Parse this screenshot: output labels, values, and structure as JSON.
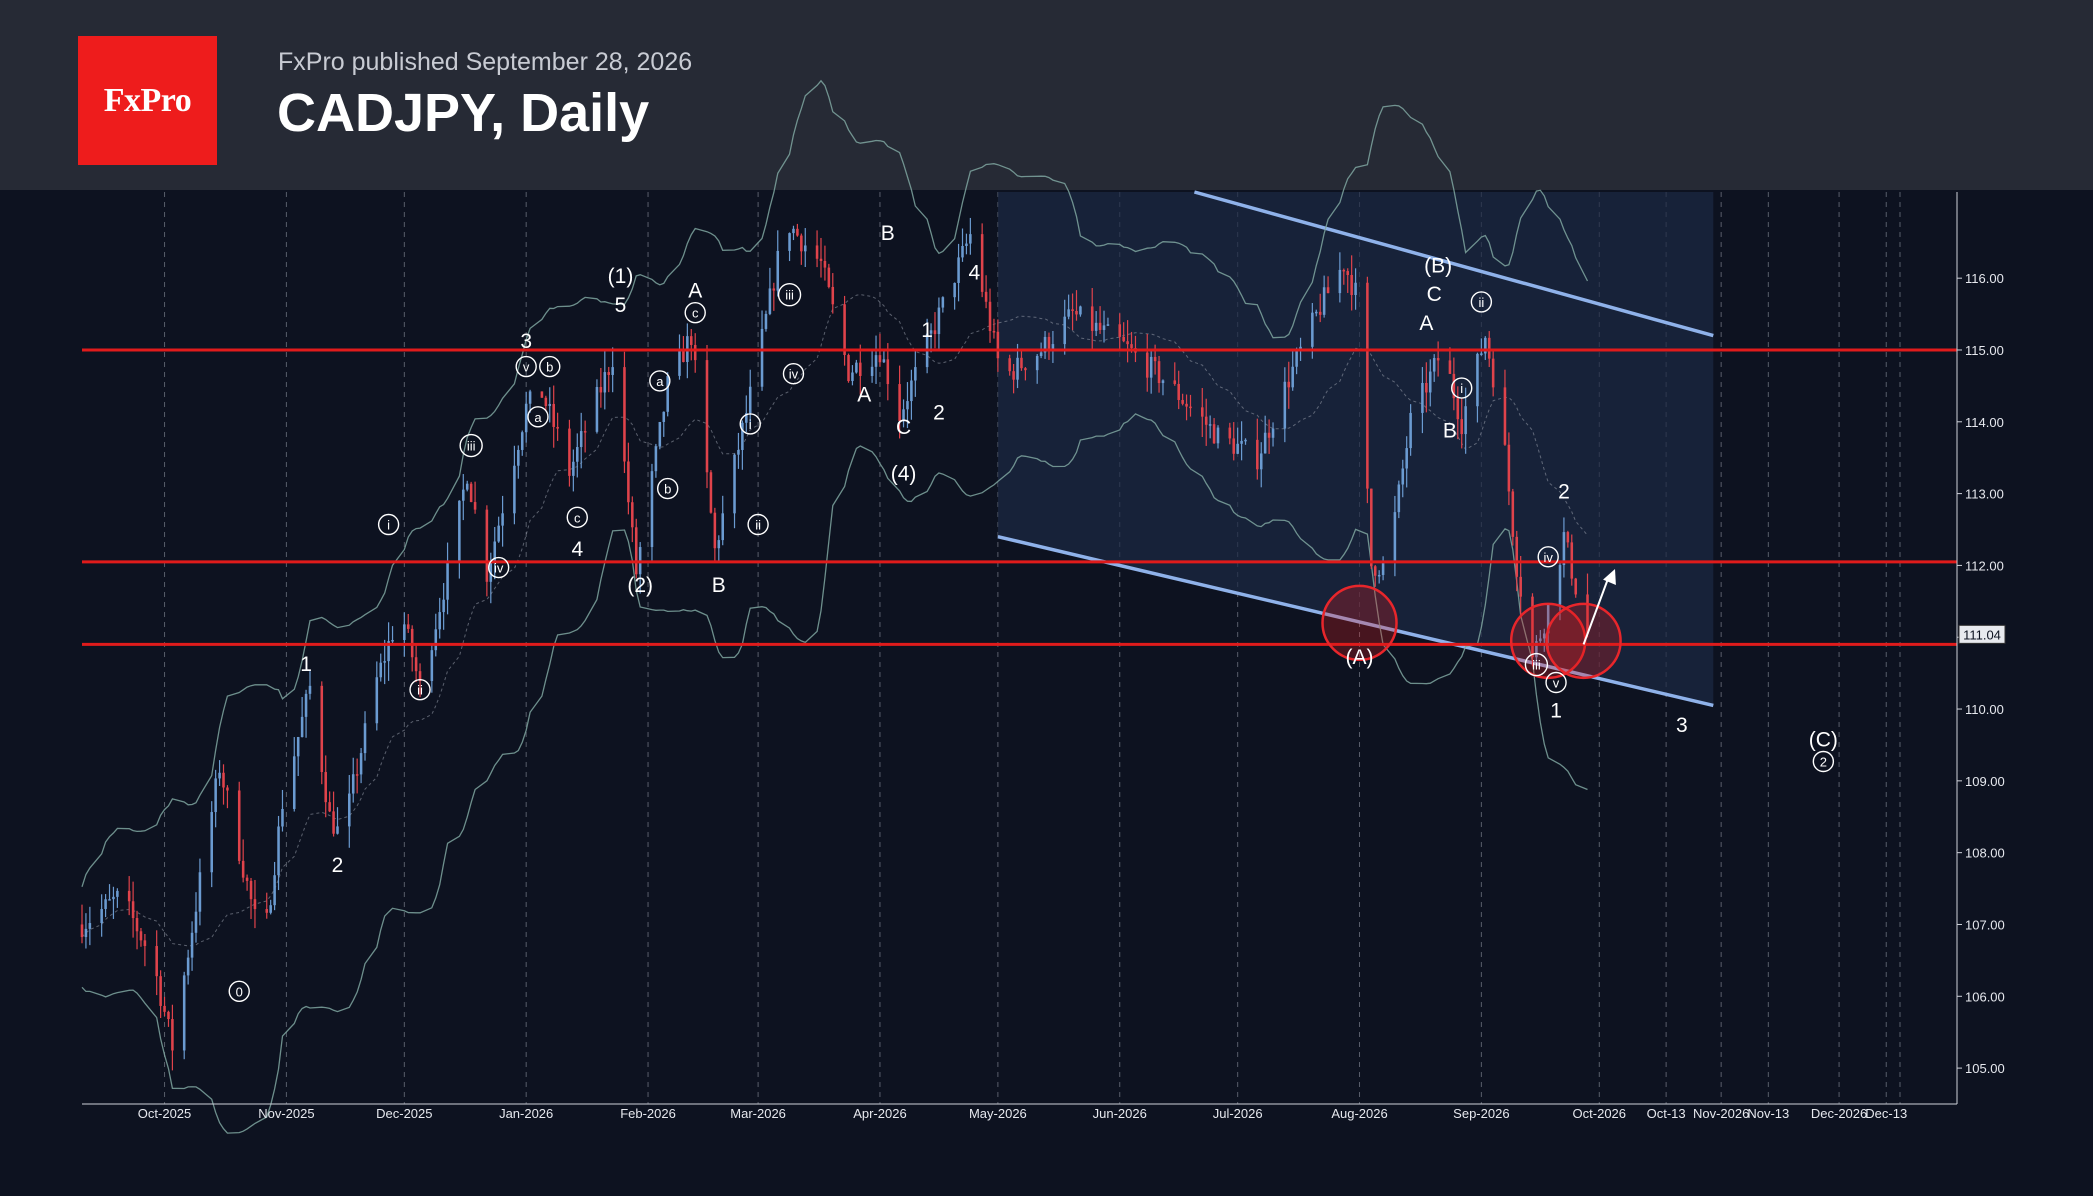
{
  "header": {
    "logo_text": "FxPro",
    "published": "FxPro published September 28, 2026",
    "title": "CADJPY, Daily"
  },
  "colors": {
    "background": "#0d1220",
    "header": "#262a35",
    "brand": "#ee1c1c",
    "level_line": "#e01b1b",
    "channel_line": "#8fb2ea",
    "channel_fill": "#1d2a45",
    "bullish": "#6b9bd1",
    "bearish": "#e0434b",
    "bollinger": "#7fa6a0"
  },
  "chart_data": {
    "type": "candlestick",
    "symbol": "CADJPY",
    "timeframe": "Daily",
    "ylim": [
      104.5,
      117.2
    ],
    "y_ticks": [
      "116.00",
      "115.00",
      "114.00",
      "113.00",
      "112.00",
      "111.00",
      "110.00",
      "109.00",
      "108.00",
      "107.00",
      "106.00",
      "105.00"
    ],
    "x_ticks": [
      "Oct-2025",
      "Nov-2025",
      "Dec-2025",
      "Jan-2026",
      "Feb-2026",
      "Mar-2026",
      "Apr-2026",
      "May-2026",
      "Jun-2026",
      "Jul-2026",
      "Aug-2026",
      "Sep-2026",
      "Oct-2026",
      "Oct-13",
      "Nov-2026",
      "Nov-13",
      "Dec-2026",
      "Dec-13"
    ],
    "x_range": [
      "2025-09-10",
      "2026-12-31"
    ],
    "last_price": "111.04",
    "horizontal_levels": [
      115.0,
      112.05,
      110.9
    ],
    "channel": {
      "upper": [
        {
          "date": "2026-06-20",
          "price": 117.2
        },
        {
          "date": "2026-10-30",
          "price": 115.2
        }
      ],
      "lower": [
        {
          "date": "2026-05-01",
          "price": 112.4
        },
        {
          "date": "2026-10-30",
          "price": 110.05
        }
      ],
      "box_start": "2026-05-01",
      "box_end": "2026-10-30"
    },
    "price_path": [
      {
        "date": "2025-09-10",
        "price": 107.0
      },
      {
        "date": "2025-09-20",
        "price": 107.4
      },
      {
        "date": "2025-09-28",
        "price": 106.5
      },
      {
        "date": "2025-10-03",
        "price": 105.3
      },
      {
        "date": "2025-10-10",
        "price": 107.6
      },
      {
        "date": "2025-10-15",
        "price": 109.2
      },
      {
        "date": "2025-10-21",
        "price": 107.8
      },
      {
        "date": "2025-10-26",
        "price": 106.6
      },
      {
        "date": "2025-10-31",
        "price": 108.7
      },
      {
        "date": "2025-11-07",
        "price": 110.3
      },
      {
        "date": "2025-11-12",
        "price": 108.5
      },
      {
        "date": "2025-11-15",
        "price": 108.2
      },
      {
        "date": "2025-11-24",
        "price": 110.4
      },
      {
        "date": "2025-11-30",
        "price": 111.4
      },
      {
        "date": "2025-12-05",
        "price": 110.3
      },
      {
        "date": "2025-12-12",
        "price": 111.9
      },
      {
        "date": "2025-12-17",
        "price": 113.3
      },
      {
        "date": "2025-12-22",
        "price": 111.9
      },
      {
        "date": "2026-01-01",
        "price": 114.2
      },
      {
        "date": "2026-01-05",
        "price": 114.4
      },
      {
        "date": "2026-01-09",
        "price": 113.8
      },
      {
        "date": "2026-01-12",
        "price": 113.3
      },
      {
        "date": "2026-01-23",
        "price": 114.9
      },
      {
        "date": "2026-01-29",
        "price": 111.9
      },
      {
        "date": "2026-02-06",
        "price": 114.5
      },
      {
        "date": "2026-02-12",
        "price": 115.2
      },
      {
        "date": "2026-02-18",
        "price": 112.2
      },
      {
        "date": "2026-02-28",
        "price": 114.6
      },
      {
        "date": "2026-03-08",
        "price": 116.8
      },
      {
        "date": "2026-03-17",
        "price": 116.2
      },
      {
        "date": "2026-03-24",
        "price": 114.7
      },
      {
        "date": "2026-04-01",
        "price": 115.0
      },
      {
        "date": "2026-04-06",
        "price": 114.1
      },
      {
        "date": "2026-04-14",
        "price": 115.2
      },
      {
        "date": "2026-04-24",
        "price": 116.6
      },
      {
        "date": "2026-05-02",
        "price": 114.6
      },
      {
        "date": "2026-05-12",
        "price": 115.0
      },
      {
        "date": "2026-05-20",
        "price": 115.5
      },
      {
        "date": "2026-06-01",
        "price": 115.1
      },
      {
        "date": "2026-06-12",
        "price": 114.6
      },
      {
        "date": "2026-06-26",
        "price": 113.8
      },
      {
        "date": "2026-07-06",
        "price": 113.5
      },
      {
        "date": "2026-07-14",
        "price": 114.6
      },
      {
        "date": "2026-07-22",
        "price": 115.6
      },
      {
        "date": "2026-07-28",
        "price": 116.2
      },
      {
        "date": "2026-07-31",
        "price": 115.8
      },
      {
        "date": "2026-08-04",
        "price": 112.0
      },
      {
        "date": "2026-08-08",
        "price": 112.0
      },
      {
        "date": "2026-08-14",
        "price": 114.0
      },
      {
        "date": "2026-08-22",
        "price": 115.0
      },
      {
        "date": "2026-08-27",
        "price": 114.0
      },
      {
        "date": "2026-09-02",
        "price": 115.2
      },
      {
        "date": "2026-09-06",
        "price": 114.1
      },
      {
        "date": "2026-09-10",
        "price": 112.0
      },
      {
        "date": "2026-09-14",
        "price": 110.7
      },
      {
        "date": "2026-09-18",
        "price": 111.4
      },
      {
        "date": "2026-09-22",
        "price": 112.4
      },
      {
        "date": "2026-09-25",
        "price": 111.7
      },
      {
        "date": "2026-09-28",
        "price": 111.04
      }
    ],
    "annotations": [
      {
        "text": "0",
        "date": "2025-10-20",
        "price": 106.0,
        "circled": true
      },
      {
        "text": "1",
        "date": "2025-11-06",
        "price": 110.6
      },
      {
        "text": "2",
        "date": "2025-11-14",
        "price": 107.8
      },
      {
        "text": "i",
        "date": "2025-11-27",
        "price": 112.5,
        "circled": true
      },
      {
        "text": "ii",
        "date": "2025-12-05",
        "price": 110.2,
        "circled": true
      },
      {
        "text": "iii",
        "date": "2025-12-18",
        "price": 113.6,
        "circled": true
      },
      {
        "text": "iv",
        "date": "2025-12-25",
        "price": 111.9,
        "circled": true
      },
      {
        "text": "v",
        "date": "2026-01-01",
        "price": 114.7,
        "circled": true
      },
      {
        "text": "3",
        "date": "2026-01-01",
        "price": 115.1
      },
      {
        "text": "a",
        "date": "2026-01-04",
        "price": 114.0,
        "circled": true
      },
      {
        "text": "b",
        "date": "2026-01-07",
        "price": 114.7,
        "circled": true
      },
      {
        "text": "c",
        "date": "2026-01-14",
        "price": 112.6,
        "circled": true
      },
      {
        "text": "4",
        "date": "2026-01-14",
        "price": 112.2
      },
      {
        "text": "(1)",
        "date": "2026-01-25",
        "price": 116.0
      },
      {
        "text": "5",
        "date": "2026-01-25",
        "price": 115.6
      },
      {
        "text": "(2)",
        "date": "2026-01-30",
        "price": 111.7
      },
      {
        "text": "a",
        "date": "2026-02-04",
        "price": 114.5,
        "circled": true
      },
      {
        "text": "b",
        "date": "2026-02-06",
        "price": 113.0,
        "circled": true
      },
      {
        "text": "A",
        "date": "2026-02-13",
        "price": 115.8
      },
      {
        "text": "c",
        "date": "2026-02-13",
        "price": 115.45,
        "circled": true
      },
      {
        "text": "B",
        "date": "2026-02-19",
        "price": 111.7
      },
      {
        "text": "i",
        "date": "2026-02-27",
        "price": 113.9,
        "circled": true
      },
      {
        "text": "ii",
        "date": "2026-03-01",
        "price": 112.5,
        "circled": true
      },
      {
        "text": "iii",
        "date": "2026-03-09",
        "price": 115.7,
        "circled": true
      },
      {
        "text": "iv",
        "date": "2026-03-10",
        "price": 114.6,
        "circled": true
      },
      {
        "text": "A",
        "date": "2026-03-28",
        "price": 114.35
      },
      {
        "text": "B",
        "date": "2026-04-03",
        "price": 116.6
      },
      {
        "text": "1",
        "date": "2026-04-13",
        "price": 115.25
      },
      {
        "text": "C",
        "date": "2026-04-07",
        "price": 113.9
      },
      {
        "text": "(4)",
        "date": "2026-04-07",
        "price": 113.25
      },
      {
        "text": "2",
        "date": "2026-04-16",
        "price": 114.1
      },
      {
        "text": "4",
        "date": "2026-04-25",
        "price": 116.05
      },
      {
        "text": "(A)",
        "date": "2026-08-01",
        "price": 110.7
      },
      {
        "text": "(B)",
        "date": "2026-08-21",
        "price": 116.15
      },
      {
        "text": "C",
        "date": "2026-08-20",
        "price": 115.75
      },
      {
        "text": "A",
        "date": "2026-08-18",
        "price": 115.35
      },
      {
        "text": "B",
        "date": "2026-08-24",
        "price": 113.85
      },
      {
        "text": "ii",
        "date": "2026-09-01",
        "price": 115.6,
        "circled": true
      },
      {
        "text": "i",
        "date": "2026-08-27",
        "price": 114.4,
        "circled": true
      },
      {
        "text": "2",
        "date": "2026-09-22",
        "price": 113.0
      },
      {
        "text": "iv",
        "date": "2026-09-18",
        "price": 112.05,
        "circled": true
      },
      {
        "text": "iii",
        "date": "2026-09-15",
        "price": 110.55,
        "circled": true
      },
      {
        "text": "v",
        "date": "2026-09-20",
        "price": 110.3,
        "circled": true
      },
      {
        "text": "1",
        "date": "2026-09-20",
        "price": 109.95
      },
      {
        "text": "3",
        "date": "2026-10-22",
        "price": 109.75
      },
      {
        "text": "(C)",
        "date": "2026-11-27",
        "price": 109.55
      },
      {
        "text": "2",
        "date": "2026-11-27",
        "price": 109.2,
        "circled": true
      }
    ],
    "highlight_circles": [
      {
        "date": "2026-08-01",
        "price": 111.2
      },
      {
        "date": "2026-09-18",
        "price": 110.95
      },
      {
        "date": "2026-09-27",
        "price": 110.95
      }
    ],
    "arrow": {
      "from": {
        "date": "2026-09-27",
        "price": 110.9
      },
      "to": {
        "date": "2026-10-05",
        "price": 111.95
      }
    }
  }
}
